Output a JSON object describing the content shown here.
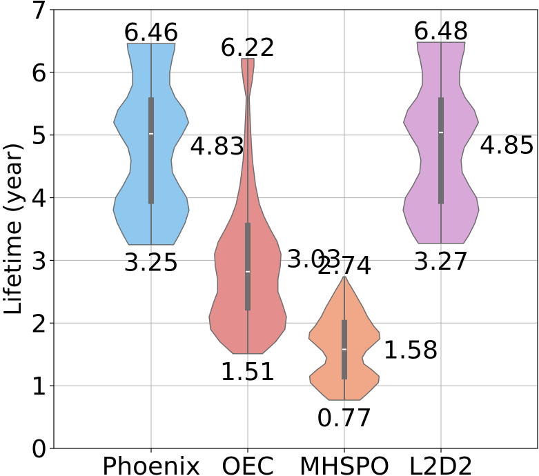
{
  "chart_data": {
    "type": "violin",
    "title": "",
    "xlabel": "",
    "ylabel": "Lifetime (year)",
    "ylim": [
      0,
      7
    ],
    "yticks": [
      0,
      1,
      2,
      3,
      4,
      5,
      6,
      7
    ],
    "grid": true,
    "categories": [
      "Phoenix",
      "OEC",
      "MHSPO",
      "L2D2"
    ],
    "colors": [
      "#8fc8ee",
      "#e48e8e",
      "#f0a888",
      "#d8a8d8"
    ],
    "violins": [
      {
        "name": "Phoenix",
        "min": 3.25,
        "max": 6.46,
        "median": 5.02,
        "q1": 3.9,
        "q3": 5.6,
        "labels": {
          "max": "6.46",
          "mean": "4.83",
          "min": "3.25"
        },
        "density": [
          [
            3.25,
            0.58
          ],
          [
            3.4,
            0.72
          ],
          [
            3.6,
            0.88
          ],
          [
            3.8,
            0.98
          ],
          [
            4.0,
            0.92
          ],
          [
            4.2,
            0.72
          ],
          [
            4.4,
            0.55
          ],
          [
            4.6,
            0.52
          ],
          [
            4.8,
            0.6
          ],
          [
            5.0,
            0.8
          ],
          [
            5.2,
            0.97
          ],
          [
            5.4,
            0.86
          ],
          [
            5.6,
            0.62
          ],
          [
            5.8,
            0.48
          ],
          [
            6.0,
            0.48
          ],
          [
            6.2,
            0.54
          ],
          [
            6.35,
            0.6
          ],
          [
            6.46,
            0.62
          ]
        ]
      },
      {
        "name": "OEC",
        "min": 1.51,
        "max": 6.22,
        "median": 2.82,
        "q1": 2.2,
        "q3": 3.6,
        "labels": {
          "max": "6.22",
          "mean": "3.03",
          "min": "1.51"
        },
        "density": [
          [
            1.51,
            0.38
          ],
          [
            1.7,
            0.72
          ],
          [
            1.9,
            0.96
          ],
          [
            2.1,
            1.0
          ],
          [
            2.3,
            0.9
          ],
          [
            2.5,
            0.78
          ],
          [
            2.7,
            0.78
          ],
          [
            2.9,
            0.84
          ],
          [
            3.1,
            0.86
          ],
          [
            3.3,
            0.76
          ],
          [
            3.5,
            0.58
          ],
          [
            3.7,
            0.42
          ],
          [
            3.9,
            0.3
          ],
          [
            4.2,
            0.2
          ],
          [
            4.6,
            0.12
          ],
          [
            5.0,
            0.08
          ],
          [
            5.4,
            0.05
          ],
          [
            5.6,
            0.04
          ],
          [
            5.85,
            0.11
          ],
          [
            6.1,
            0.16
          ],
          [
            6.22,
            0.16
          ]
        ]
      },
      {
        "name": "MHSPO",
        "min": 0.77,
        "max": 2.74,
        "median": 1.58,
        "q1": 1.1,
        "q3": 2.05,
        "labels": {
          "max": "2.74",
          "mean": "1.58",
          "min": "0.77"
        },
        "density": [
          [
            0.77,
            0.4
          ],
          [
            0.85,
            0.55
          ],
          [
            0.95,
            0.72
          ],
          [
            1.05,
            0.88
          ],
          [
            1.15,
            0.9
          ],
          [
            1.25,
            0.72
          ],
          [
            1.35,
            0.5
          ],
          [
            1.45,
            0.46
          ],
          [
            1.55,
            0.56
          ],
          [
            1.65,
            0.74
          ],
          [
            1.75,
            0.92
          ],
          [
            1.85,
            0.9
          ],
          [
            1.95,
            0.76
          ],
          [
            2.1,
            0.6
          ],
          [
            2.25,
            0.48
          ],
          [
            2.4,
            0.34
          ],
          [
            2.55,
            0.2
          ],
          [
            2.65,
            0.1
          ],
          [
            2.74,
            0.03
          ]
        ]
      },
      {
        "name": "L2D2",
        "min": 3.27,
        "max": 6.48,
        "median": 5.04,
        "q1": 3.9,
        "q3": 5.6,
        "labels": {
          "max": "6.48",
          "mean": "4.85",
          "min": "3.27"
        },
        "density": [
          [
            3.27,
            0.58
          ],
          [
            3.4,
            0.72
          ],
          [
            3.6,
            0.88
          ],
          [
            3.8,
            0.98
          ],
          [
            4.0,
            0.92
          ],
          [
            4.2,
            0.72
          ],
          [
            4.4,
            0.55
          ],
          [
            4.6,
            0.52
          ],
          [
            4.8,
            0.6
          ],
          [
            5.0,
            0.8
          ],
          [
            5.2,
            0.97
          ],
          [
            5.4,
            0.86
          ],
          [
            5.6,
            0.62
          ],
          [
            5.8,
            0.48
          ],
          [
            6.0,
            0.48
          ],
          [
            6.2,
            0.54
          ],
          [
            6.35,
            0.6
          ],
          [
            6.48,
            0.62
          ]
        ]
      }
    ]
  }
}
